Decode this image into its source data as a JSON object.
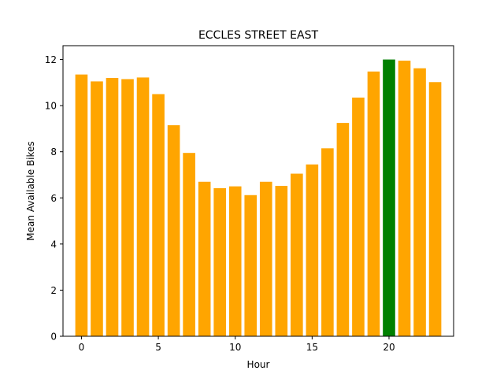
{
  "chart_data": {
    "type": "bar",
    "title": "ECCLES STREET EAST",
    "xlabel": "Hour",
    "ylabel": "Mean Available Bikes",
    "x": [
      0,
      1,
      2,
      3,
      4,
      5,
      6,
      7,
      8,
      9,
      10,
      11,
      12,
      13,
      14,
      15,
      16,
      17,
      18,
      19,
      20,
      21,
      22,
      23
    ],
    "values": [
      11.35,
      11.05,
      11.2,
      11.15,
      11.22,
      10.5,
      9.15,
      7.95,
      6.7,
      6.42,
      6.5,
      6.12,
      6.7,
      6.52,
      7.05,
      7.45,
      8.15,
      9.25,
      10.35,
      11.48,
      12.0,
      11.95,
      11.62,
      11.02
    ],
    "highlight_index": 20,
    "xlim": [
      -1.2,
      24.2
    ],
    "ylim": [
      0,
      12.6
    ],
    "xticks": [
      0,
      5,
      10,
      15,
      20
    ],
    "yticks": [
      0,
      2,
      4,
      6,
      8,
      10,
      12
    ],
    "colors": {
      "bar": "#FFA500",
      "highlight": "#008000"
    },
    "grid": false,
    "legend": "none"
  }
}
